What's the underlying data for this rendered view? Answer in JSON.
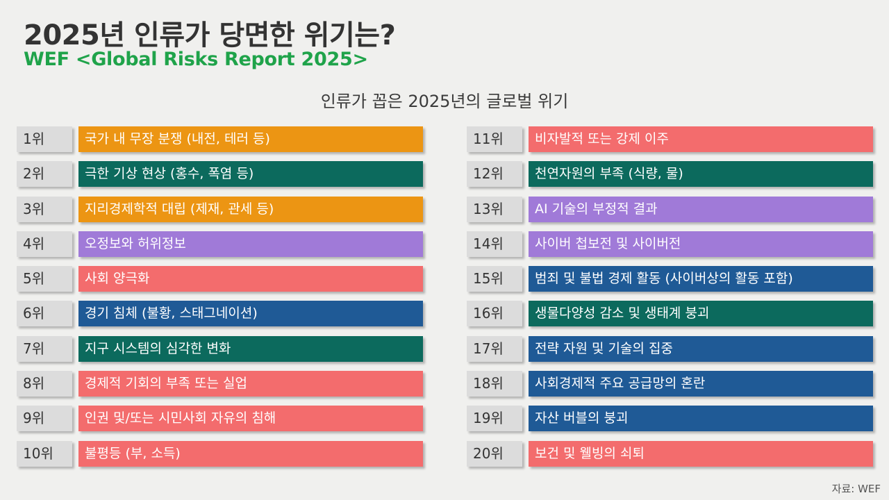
{
  "title": "2025년 인류가 당면한 위기는?",
  "subtitle": "WEF <Global Risks Report 2025>",
  "heading": "인류가 꼽은 2025년의 글로벌 위기",
  "colors": {
    "subtitle": "#1fa34a",
    "orange": "#ec9513",
    "teal": "#0c6a5d",
    "purple": "#a07ad8",
    "red": "#f36c6d",
    "blue": "#1f5a96"
  },
  "left_items": [
    {
      "rank": "1위",
      "label": "국가 내 무장 분쟁 (내전, 테러 등)",
      "color": "orange"
    },
    {
      "rank": "2위",
      "label": "극한 기상 현상 (홍수, 폭염 등)",
      "color": "teal"
    },
    {
      "rank": "3위",
      "label": "지리경제학적 대립 (제재, 관세 등)",
      "color": "orange"
    },
    {
      "rank": "4위",
      "label": "오정보와 허위정보",
      "color": "purple"
    },
    {
      "rank": "5위",
      "label": "사회 양극화",
      "color": "red"
    },
    {
      "rank": "6위",
      "label": "경기 침체 (불황, 스태그네이션)",
      "color": "blue"
    },
    {
      "rank": "7위",
      "label": "지구 시스템의 심각한 변화",
      "color": "teal"
    },
    {
      "rank": "8위",
      "label": "경제적 기회의 부족 또는 실업",
      "color": "red"
    },
    {
      "rank": "9위",
      "label": "인권 및/또는 시민사회 자유의 침해",
      "color": "red"
    },
    {
      "rank": "10위",
      "label": "불평등 (부, 소득)",
      "color": "red"
    }
  ],
  "right_items": [
    {
      "rank": "11위",
      "label": "비자발적 또는 강제 이주",
      "color": "red"
    },
    {
      "rank": "12위",
      "label": "천연자원의 부족 (식량, 물)",
      "color": "teal"
    },
    {
      "rank": "13위",
      "label": "AI 기술의 부정적 결과",
      "color": "purple"
    },
    {
      "rank": "14위",
      "label": "사이버 첩보전 및 사이버전",
      "color": "purple"
    },
    {
      "rank": "15위",
      "label": "범죄 및 불법 경제 활동 (사이버상의 활동 포함)",
      "color": "blue"
    },
    {
      "rank": "16위",
      "label": "생물다양성 감소 및 생태계 붕괴",
      "color": "teal"
    },
    {
      "rank": "17위",
      "label": "전략 자원 및 기술의 집중",
      "color": "blue"
    },
    {
      "rank": "18위",
      "label": "사회경제적 주요 공급망의 혼란",
      "color": "blue"
    },
    {
      "rank": "19위",
      "label": "자산 버블의 붕괴",
      "color": "blue"
    },
    {
      "rank": "20위",
      "label": "보건 및 웰빙의 쇠퇴",
      "color": "red"
    }
  ],
  "source": "자료: WEF"
}
